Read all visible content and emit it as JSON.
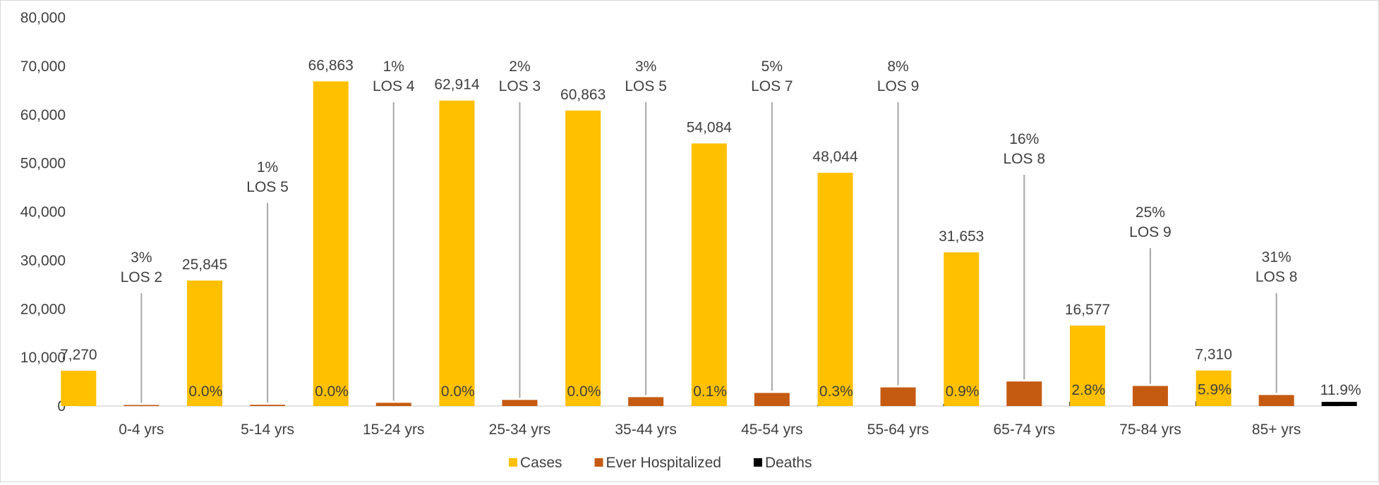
{
  "chart_data": {
    "type": "bar",
    "categories": [
      "0-4 yrs",
      "5-14 yrs",
      "15-24 yrs",
      "25-34 yrs",
      "35-44 yrs",
      "45-54 yrs",
      "55-64 yrs",
      "65-74 yrs",
      "75-84 yrs",
      "85+ yrs"
    ],
    "series": [
      {
        "name": "Cases",
        "color": "#FFC000",
        "values": [
          7270,
          25845,
          66863,
          62914,
          60863,
          54084,
          48044,
          31653,
          16577,
          7310
        ],
        "labels": [
          "7,270",
          "25,845",
          "66,863",
          "62,914",
          "60,863",
          "54,084",
          "48,044",
          "31,653",
          "16,577",
          "7,310"
        ]
      },
      {
        "name": "Ever Hospitalized",
        "color": "#C55A11",
        "values": [
          220,
          260,
          670,
          1260,
          1830,
          2700,
          3840,
          5060,
          4140,
          2270
        ]
      },
      {
        "name": "Deaths",
        "color": "#000000",
        "values": [
          0,
          0,
          0,
          0,
          60,
          160,
          430,
          890,
          980,
          870
        ],
        "labels": [
          "0.0%",
          "0.0%",
          "0.0%",
          "0.0%",
          "0.1%",
          "0.3%",
          "0.9%",
          "2.8%",
          "5.9%",
          "11.9%"
        ]
      }
    ],
    "hospitalized_annotations": [
      {
        "pct": "3%",
        "los": "LOS 2"
      },
      {
        "pct": "1%",
        "los": "LOS 5"
      },
      {
        "pct": "1%",
        "los": "LOS 4"
      },
      {
        "pct": "2%",
        "los": "LOS 3"
      },
      {
        "pct": "3%",
        "los": "LOS 5"
      },
      {
        "pct": "5%",
        "los": "LOS 7"
      },
      {
        "pct": "8%",
        "los": "LOS 9"
      },
      {
        "pct": "16%",
        "los": "LOS 8"
      },
      {
        "pct": "25%",
        "los": "LOS 9"
      },
      {
        "pct": "31%",
        "los": "LOS 8"
      }
    ],
    "ylim": [
      0,
      80000
    ],
    "yticks": [
      "0",
      "10,000",
      "20,000",
      "30,000",
      "40,000",
      "50,000",
      "60,000",
      "70,000",
      "80,000"
    ],
    "grid": false,
    "legend_position": "bottom",
    "title": "",
    "xlabel": "",
    "ylabel": ""
  }
}
